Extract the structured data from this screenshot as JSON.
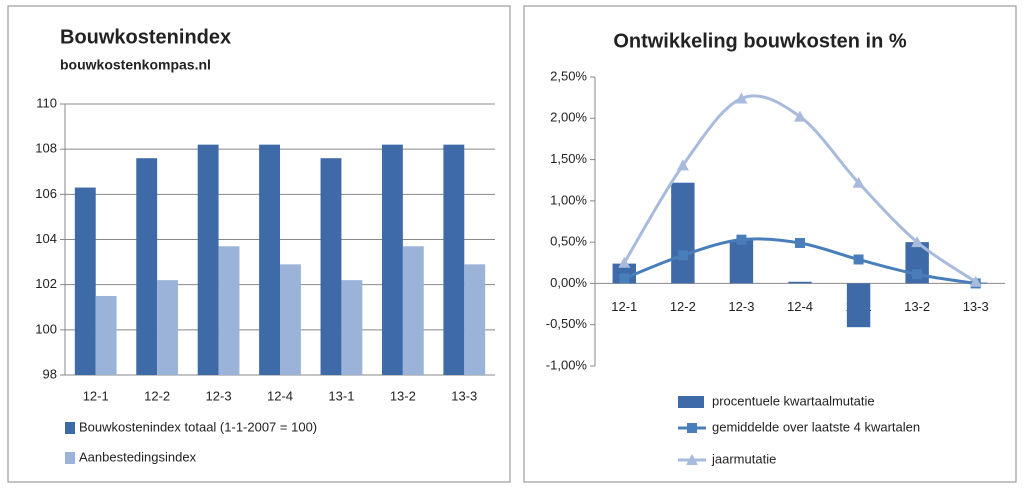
{
  "chart_data": [
    {
      "type": "bar",
      "title": "Bouwkostenindex",
      "subtitle": "bouwkostenkompas.nl",
      "categories": [
        "12-1",
        "12-2",
        "12-3",
        "12-4",
        "13-1",
        "13-2",
        "13-3"
      ],
      "series": [
        {
          "name": "Bouwkostenindex totaal (1-1-2007 = 100)",
          "color": "#3f6aa8",
          "values": [
            106.3,
            107.6,
            108.2,
            108.2,
            107.6,
            108.2,
            108.2
          ]
        },
        {
          "name": "Aanbestedingsindex",
          "color": "#9bb3d9",
          "values": [
            101.5,
            102.2,
            103.7,
            102.9,
            102.2,
            103.7,
            102.9
          ]
        }
      ],
      "ylim": [
        98,
        110
      ],
      "yticks": [
        98,
        100,
        102,
        104,
        106,
        108,
        110
      ],
      "grid": true
    },
    {
      "type": "combo",
      "title": "Ontwikkeling bouwkosten  in %",
      "categories": [
        "12-1",
        "12-2",
        "12-3",
        "12-4",
        "13-1",
        "13-2",
        "13-3"
      ],
      "series": [
        {
          "name": "procentuele kwartaalmutatie",
          "type": "bar",
          "color": "#3f6aa8",
          "values": [
            0.24,
            1.22,
            0.52,
            0.02,
            -0.53,
            0.5,
            0.01
          ]
        },
        {
          "name": "gemiddelde over laatste 4 kwartalen",
          "type": "line",
          "marker": "square",
          "color": "#4a7ebb",
          "values": [
            0.06,
            0.34,
            0.53,
            0.49,
            0.29,
            0.11,
            0.0
          ]
        },
        {
          "name": "jaarmutatie",
          "type": "line",
          "marker": "triangle",
          "color": "#a9bbdc",
          "values": [
            0.25,
            1.43,
            2.24,
            2.02,
            1.22,
            0.5,
            0.02
          ]
        }
      ],
      "ylim": [
        -1,
        2.5
      ],
      "yticks": [
        {
          "value": -1,
          "label": "-1,00%"
        },
        {
          "value": -0.5,
          "label": "-0,50%"
        },
        {
          "value": 0,
          "label": "0,00%"
        },
        {
          "value": 0.5,
          "label": "0,50%"
        },
        {
          "value": 1,
          "label": "1,00%"
        },
        {
          "value": 1.5,
          "label": "1,50%"
        },
        {
          "value": 2,
          "label": "2,00%"
        },
        {
          "value": 2.5,
          "label": "2,50%"
        }
      ],
      "grid": false
    }
  ]
}
